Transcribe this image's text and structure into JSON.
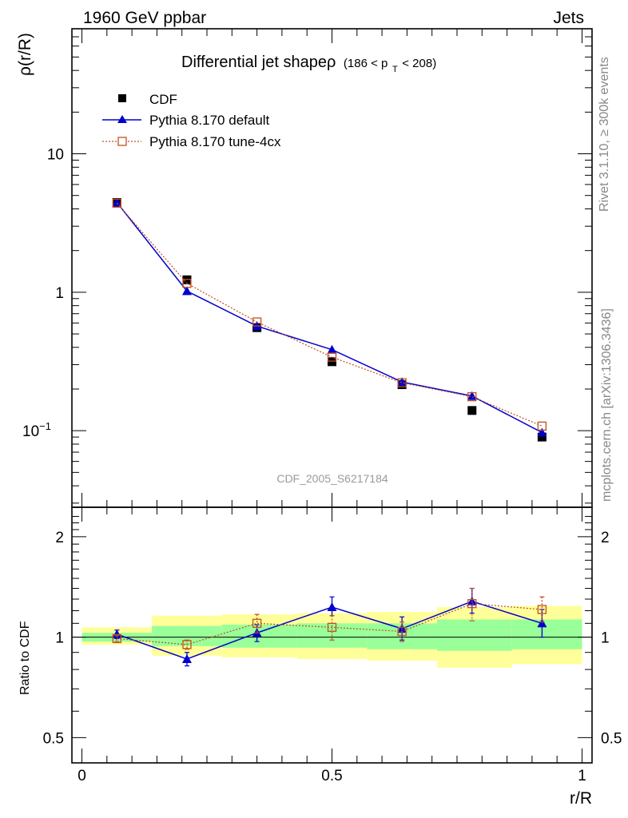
{
  "header": {
    "left": "1960 GeV ppbar",
    "right": "Jets"
  },
  "side_labels": {
    "rivet": "Rivet 3.1.10, ≥ 300k events",
    "mcplots": "mcplots.cern.ch [arXiv:1306.3436]"
  },
  "chart_data": [
    {
      "type": "line",
      "panel": "main",
      "title_main": "Differential jet shapeρ",
      "title_sub_a": "(186 < p",
      "title_sub_t": "T",
      "title_sub_b": " < 208)",
      "ylabel": "ρ(r/R)",
      "y_scale": "log",
      "ylim": [
        0.028,
        80
      ],
      "xlim": [
        -0.02,
        1.02
      ],
      "y_ticks": [
        {
          "label": "10",
          "value": 10,
          "exp": ""
        },
        {
          "label": "1",
          "value": 1,
          "exp": ""
        },
        {
          "label": "10",
          "value": 0.1,
          "exp": "−1"
        }
      ],
      "watermark": "CDF_2005_S6217184",
      "legend_position": "top-left",
      "x": [
        0.07,
        0.21,
        0.35,
        0.5,
        0.64,
        0.78,
        0.92
      ],
      "series": [
        {
          "name": "CDF",
          "marker": "filled-square",
          "color": "#000000",
          "values": [
            4.45,
            1.23,
            0.555,
            0.315,
            0.215,
            0.14,
            0.09
          ]
        },
        {
          "name": "Pythia 8.170 default",
          "marker": "filled-triangle",
          "color": "#0000cc",
          "values": [
            4.45,
            1.02,
            0.57,
            0.385,
            0.225,
            0.178,
            0.097
          ]
        },
        {
          "name": "Pythia 8.170 tune-4cx",
          "marker": "open-square",
          "color": "#c05020",
          "dashed": true,
          "values": [
            4.4,
            1.16,
            0.61,
            0.34,
            0.222,
            0.176,
            0.108
          ]
        }
      ]
    },
    {
      "type": "line",
      "panel": "ratio",
      "ylabel": "Ratio to CDF",
      "xlabel": "r/R",
      "y_scale": "log",
      "ylim": [
        0.42,
        2.45
      ],
      "xlim": [
        -0.02,
        1.02
      ],
      "y_ticks": [
        {
          "label": "2",
          "value": 2
        },
        {
          "label": "1",
          "value": 1
        },
        {
          "label": "0.5",
          "value": 0.5
        }
      ],
      "x_ticks": [
        {
          "label": "0",
          "value": 0
        },
        {
          "label": "0.5",
          "value": 0.5
        },
        {
          "label": "1",
          "value": 1
        }
      ],
      "bands": [
        {
          "x0": 0.0,
          "x1": 0.14,
          "yellow": [
            0.95,
            1.07
          ],
          "green": [
            0.97,
            1.03
          ]
        },
        {
          "x0": 0.14,
          "x1": 0.28,
          "yellow": [
            0.88,
            1.16
          ],
          "green": [
            0.94,
            1.08
          ]
        },
        {
          "x0": 0.28,
          "x1": 0.43,
          "yellow": [
            0.87,
            1.17
          ],
          "green": [
            0.93,
            1.09
          ]
        },
        {
          "x0": 0.43,
          "x1": 0.57,
          "yellow": [
            0.86,
            1.18
          ],
          "green": [
            0.93,
            1.1
          ]
        },
        {
          "x0": 0.57,
          "x1": 0.71,
          "yellow": [
            0.85,
            1.19
          ],
          "green": [
            0.92,
            1.1
          ]
        },
        {
          "x0": 0.71,
          "x1": 0.86,
          "yellow": [
            0.81,
            1.23
          ],
          "green": [
            0.91,
            1.13
          ]
        },
        {
          "x0": 0.86,
          "x1": 1.0,
          "yellow": [
            0.83,
            1.24
          ],
          "green": [
            0.92,
            1.13
          ]
        }
      ],
      "x": [
        0.07,
        0.21,
        0.35,
        0.5,
        0.64,
        0.78,
        0.92
      ],
      "series": [
        {
          "name": "Pythia 8.170 default",
          "color": "#0000cc",
          "values": [
            1.02,
            0.86,
            1.03,
            1.23,
            1.06,
            1.28,
            1.1
          ],
          "err_lo": [
            0.03,
            0.04,
            0.06,
            0.07,
            0.08,
            0.1,
            0.1
          ],
          "err_hi": [
            0.03,
            0.04,
            0.06,
            0.09,
            0.09,
            0.12,
            0.11
          ]
        },
        {
          "name": "Pythia 8.170 tune-4cx",
          "color": "#c05020",
          "dashed": true,
          "values": [
            0.99,
            0.95,
            1.1,
            1.07,
            1.04,
            1.26,
            1.21
          ],
          "err_lo": [
            0.02,
            0.03,
            0.07,
            0.09,
            0.07,
            0.14,
            0.1
          ],
          "err_hi": [
            0.02,
            0.03,
            0.07,
            0.09,
            0.07,
            0.14,
            0.11
          ]
        }
      ]
    }
  ]
}
